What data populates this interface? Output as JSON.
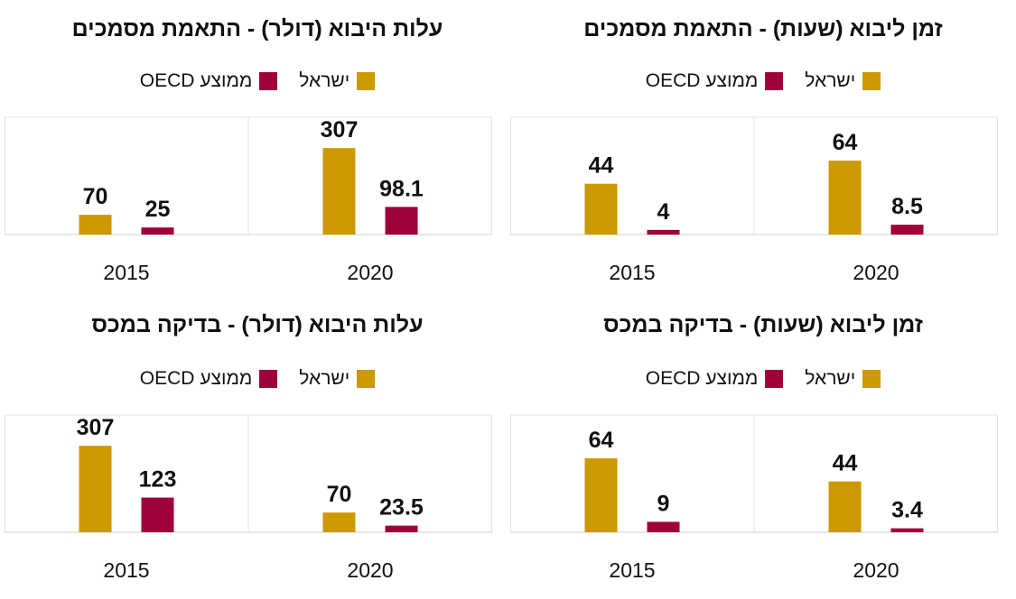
{
  "chart_data": [
    {
      "type": "bar",
      "title": "זמן ליבוא (שעות) - התאמת מסמכים",
      "categories": [
        "2020",
        "2015"
      ],
      "series": [
        {
          "name": "ישראל",
          "color": "#CC9900",
          "values": [
            64,
            44
          ]
        },
        {
          "name": "ממוצע OECD",
          "color": "#A0003A",
          "values": [
            8.5,
            4
          ]
        }
      ],
      "value_labels": [
        [
          "64",
          "44"
        ],
        [
          "8.5",
          "4"
        ]
      ],
      "ylim": [
        0,
        100
      ],
      "legend": "top-center",
      "grid": false
    },
    {
      "type": "bar",
      "title": "עלות היבוא (דולר) - התאמת מסמכים",
      "categories": [
        "2020",
        "2015"
      ],
      "series": [
        {
          "name": "ישראל",
          "color": "#CC9900",
          "values": [
            307,
            70
          ]
        },
        {
          "name": "ממוצע OECD",
          "color": "#A0003A",
          "values": [
            98.1,
            25
          ]
        }
      ],
      "value_labels": [
        [
          "307",
          "70"
        ],
        [
          "98.1",
          "25"
        ]
      ],
      "ylim": [
        0,
        410
      ],
      "legend": "top-center",
      "grid": false
    },
    {
      "type": "bar",
      "title": "זמן ליבוא (שעות) - בדיקה במכס",
      "categories": [
        "2020",
        "2015"
      ],
      "series": [
        {
          "name": "ישראל",
          "color": "#CC9900",
          "values": [
            44,
            64
          ]
        },
        {
          "name": "ממוצע OECD",
          "color": "#A0003A",
          "values": [
            3.4,
            9
          ]
        }
      ],
      "value_labels": [
        [
          "44",
          "64"
        ],
        [
          "3.4",
          "9"
        ]
      ],
      "ylim": [
        0,
        100
      ],
      "legend": "top-center",
      "grid": false
    },
    {
      "type": "bar",
      "title": "עלות היבוא (דולר) - בדיקה במכס",
      "categories": [
        "2020",
        "2015"
      ],
      "series": [
        {
          "name": "ישראל",
          "color": "#CC9900",
          "values": [
            70,
            307
          ]
        },
        {
          "name": "ממוצע OECD",
          "color": "#A0003A",
          "values": [
            23.5,
            123
          ]
        }
      ],
      "value_labels": [
        [
          "70",
          "307"
        ],
        [
          "23.5",
          "123"
        ]
      ],
      "ylim": [
        0,
        410
      ],
      "legend": "top-center",
      "grid": false
    }
  ]
}
